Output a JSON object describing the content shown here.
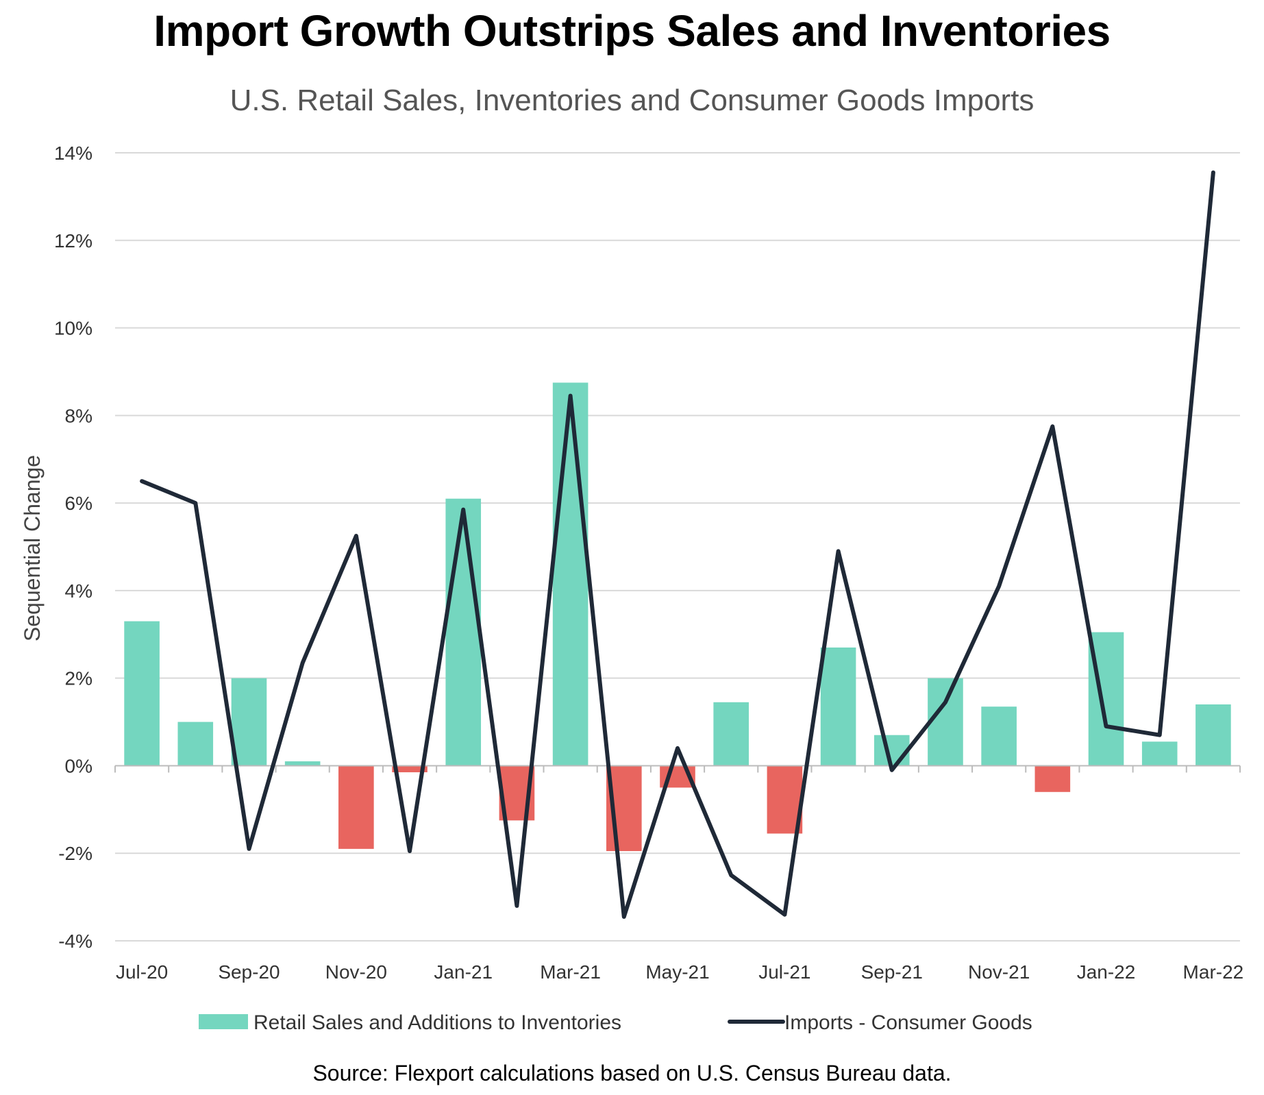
{
  "title": "Import Growth Outstrips Sales and Inventories",
  "subtitle": "U.S. Retail Sales, Inventories and Consumer Goods Imports",
  "source": "Source: Flexport calculations based on U.S. Census Bureau data.",
  "colors": {
    "bar_positive": "#74D6BF",
    "bar_negative": "#E8655F",
    "line": "#1F2937",
    "grid": "#D9D9D9",
    "axis": "#BBBBBB"
  },
  "chart_data": {
    "type": "bar+line",
    "ylabel": "Sequential Change",
    "xlabel": "",
    "ylim": [
      -4,
      14
    ],
    "yticks": [
      14,
      12,
      10,
      8,
      6,
      4,
      2,
      0,
      -2,
      -4
    ],
    "ytick_labels": [
      "14%",
      "12%",
      "10%",
      "8%",
      "6%",
      "4%",
      "2%",
      "0%",
      "-2%",
      "-4%"
    ],
    "months": [
      "Jul-20",
      "Aug-20",
      "Sep-20",
      "Oct-20",
      "Nov-20",
      "Dec-20",
      "Jan-21",
      "Feb-21",
      "Mar-21",
      "Apr-21",
      "May-21",
      "Jun-21",
      "Jul-21",
      "Aug-21",
      "Sep-21",
      "Oct-21",
      "Nov-21",
      "Dec-21",
      "Jan-22",
      "Feb-22",
      "Mar-22"
    ],
    "xtick_labels": [
      "Jul-20",
      "",
      "Sep-20",
      "",
      "Nov-20",
      "",
      "Jan-21",
      "",
      "Mar-21",
      "",
      "May-21",
      "",
      "Jul-21",
      "",
      "Sep-21",
      "",
      "Nov-21",
      "",
      "Jan-22",
      "",
      "Mar-22"
    ],
    "series": [
      {
        "name": "Retail Sales and Additions to Inventories",
        "kind": "bar",
        "values": [
          3.3,
          1.0,
          2.0,
          0.1,
          -1.9,
          -0.15,
          6.1,
          -1.25,
          8.75,
          -1.95,
          -0.5,
          1.45,
          -1.55,
          2.7,
          0.7,
          2.0,
          1.35,
          -0.6,
          3.05,
          0.55,
          1.4
        ]
      },
      {
        "name": "Imports - Consumer Goods",
        "kind": "line",
        "values": [
          6.5,
          6.0,
          -1.9,
          2.35,
          5.25,
          -1.95,
          5.85,
          -3.2,
          8.45,
          -3.45,
          0.4,
          -2.5,
          -3.4,
          4.9,
          -0.1,
          1.45,
          4.1,
          7.75,
          0.9,
          0.7,
          13.55
        ]
      }
    ],
    "legend": [
      {
        "label": "Retail Sales and Additions to Inventories",
        "symbol": "bar"
      },
      {
        "label": "Imports - Consumer Goods",
        "symbol": "line"
      }
    ],
    "legend_position": "bottom"
  }
}
